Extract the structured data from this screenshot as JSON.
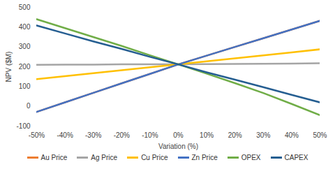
{
  "chart_data": {
    "type": "line",
    "x_label": "Variation (%)",
    "y_label": "NPV ($M)",
    "x": [
      -50,
      -40,
      -30,
      -20,
      -10,
      0,
      10,
      20,
      30,
      40,
      50
    ],
    "xlim": [
      -50,
      50
    ],
    "xticks": [
      {
        "value": -50,
        "label": "-50%"
      },
      {
        "value": -40,
        "label": "-40%"
      },
      {
        "value": -30,
        "label": "-30%"
      },
      {
        "value": -20,
        "label": "-20%"
      },
      {
        "value": -10,
        "label": "-10%"
      },
      {
        "value": 0,
        "label": "0%"
      },
      {
        "value": 10,
        "label": "10%"
      },
      {
        "value": 20,
        "label": "20%"
      },
      {
        "value": 30,
        "label": "30%"
      },
      {
        "value": 40,
        "label": "40%"
      },
      {
        "value": 50,
        "label": "50%"
      }
    ],
    "ylim": [
      -100,
      500
    ],
    "yticks": [
      -100,
      0,
      100,
      200,
      300,
      400,
      500
    ],
    "grid": false,
    "legend": "bottom",
    "series": [
      {
        "name": "Au Price",
        "color": "#ED7D31",
        "values": [
          -28,
          20,
          68,
          116,
          164,
          212,
          256,
          300,
          344,
          388,
          432
        ]
      },
      {
        "name": "Ag Price",
        "color": "#A5A5A5",
        "values": [
          210,
          211,
          211,
          212,
          212,
          212,
          213,
          214,
          215,
          216,
          218
        ]
      },
      {
        "name": "Cu Price",
        "color": "#FFC000",
        "values": [
          137,
          152,
          167,
          182,
          197,
          212,
          227,
          242,
          257,
          272,
          288
        ]
      },
      {
        "name": "Zn Price",
        "color": "#4472C4",
        "values": [
          -28,
          20,
          68,
          116,
          164,
          212,
          256,
          300,
          344,
          388,
          432
        ]
      },
      {
        "name": "OPEX",
        "color": "#70AD47",
        "values": [
          440,
          395,
          350,
          305,
          258,
          212,
          165,
          117,
          67,
          12,
          -45
        ]
      },
      {
        "name": "CAPEX",
        "color": "#255E91",
        "values": [
          408,
          368,
          328,
          290,
          250,
          212,
          172,
          135,
          97,
          58,
          20
        ]
      }
    ]
  }
}
